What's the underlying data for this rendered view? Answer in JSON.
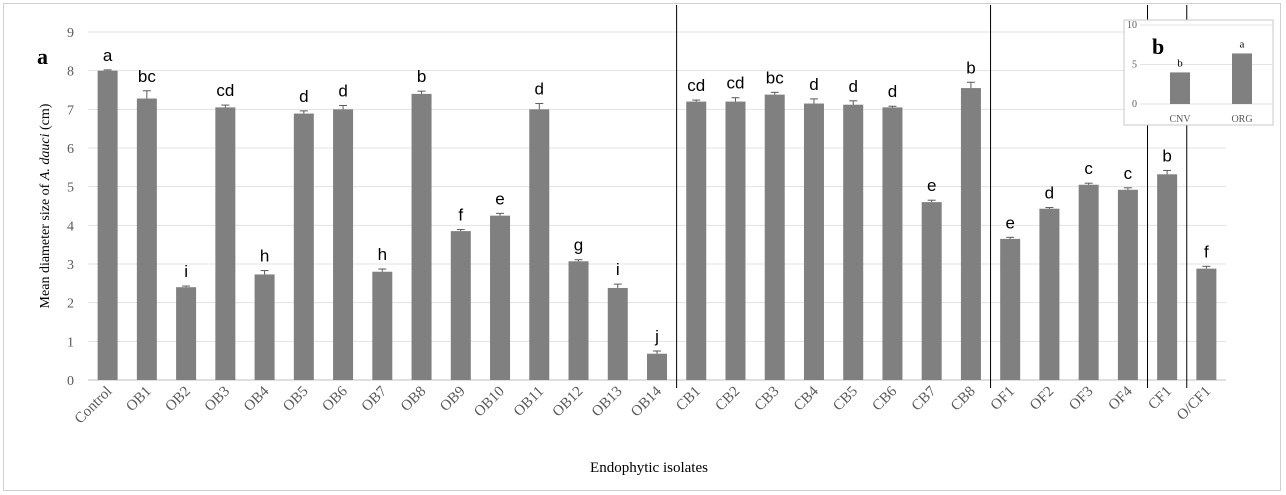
{
  "chart_data": [
    {
      "panel": "a",
      "type": "bar",
      "xlabel": "Endophytic isolates",
      "ylabel_prefix": "Mean diameter size of ",
      "ylabel_italic": "A. dauci",
      "ylabel_suffix": " (cm)",
      "ylim": [
        0,
        9
      ],
      "yticks": [
        "0",
        "1",
        "2",
        "3",
        "4",
        "5",
        "6",
        "7",
        "8",
        "9"
      ],
      "grid": true,
      "categories": [
        "Control",
        "OB1",
        "OB2",
        "OB3",
        "OB4",
        "OB5",
        "OB6",
        "OB7",
        "OB8",
        "OB9",
        "OB10",
        "OB11",
        "OB12",
        "OB13",
        "OB14",
        "CB1",
        "CB2",
        "CB3",
        "CB4",
        "CB5",
        "CB6",
        "CB7",
        "CB8",
        "OF1",
        "OF2",
        "OF3",
        "OF4",
        "CF1",
        "O/CF1"
      ],
      "values": [
        8.0,
        7.28,
        2.4,
        7.05,
        2.73,
        6.89,
        7.0,
        2.8,
        7.4,
        3.85,
        4.25,
        7.0,
        3.07,
        2.38,
        0.68,
        7.2,
        7.2,
        7.38,
        7.15,
        7.12,
        7.05,
        4.6,
        7.55,
        3.65,
        4.43,
        5.05,
        4.92,
        5.32,
        2.88
      ],
      "errors": [
        0.02,
        0.2,
        0.03,
        0.06,
        0.1,
        0.07,
        0.1,
        0.07,
        0.07,
        0.04,
        0.06,
        0.15,
        0.04,
        0.1,
        0.07,
        0.04,
        0.1,
        0.06,
        0.12,
        0.1,
        0.03,
        0.05,
        0.15,
        0.04,
        0.03,
        0.04,
        0.05,
        0.1,
        0.06
      ],
      "letters": [
        "a",
        "bc",
        "i",
        "cd",
        "h",
        "d",
        "d",
        "h",
        "b",
        "f",
        "e",
        "d",
        "g",
        "i",
        "j",
        "cd",
        "cd",
        "bc",
        "d",
        "d",
        "d",
        "e",
        "b",
        "e",
        "d",
        "c",
        "c",
        "b",
        "f"
      ],
      "group_dividers_after": [
        14,
        22,
        26,
        27
      ],
      "bar_color": "#808080"
    },
    {
      "panel": "b",
      "type": "bar",
      "categories": [
        "CNV",
        "ORG"
      ],
      "values": [
        4.0,
        6.4
      ],
      "letters": [
        "b",
        "a"
      ],
      "ylim": [
        0,
        10
      ],
      "yticks": [
        "0",
        "5",
        "10"
      ],
      "grid": true,
      "bar_color": "#808080"
    }
  ]
}
